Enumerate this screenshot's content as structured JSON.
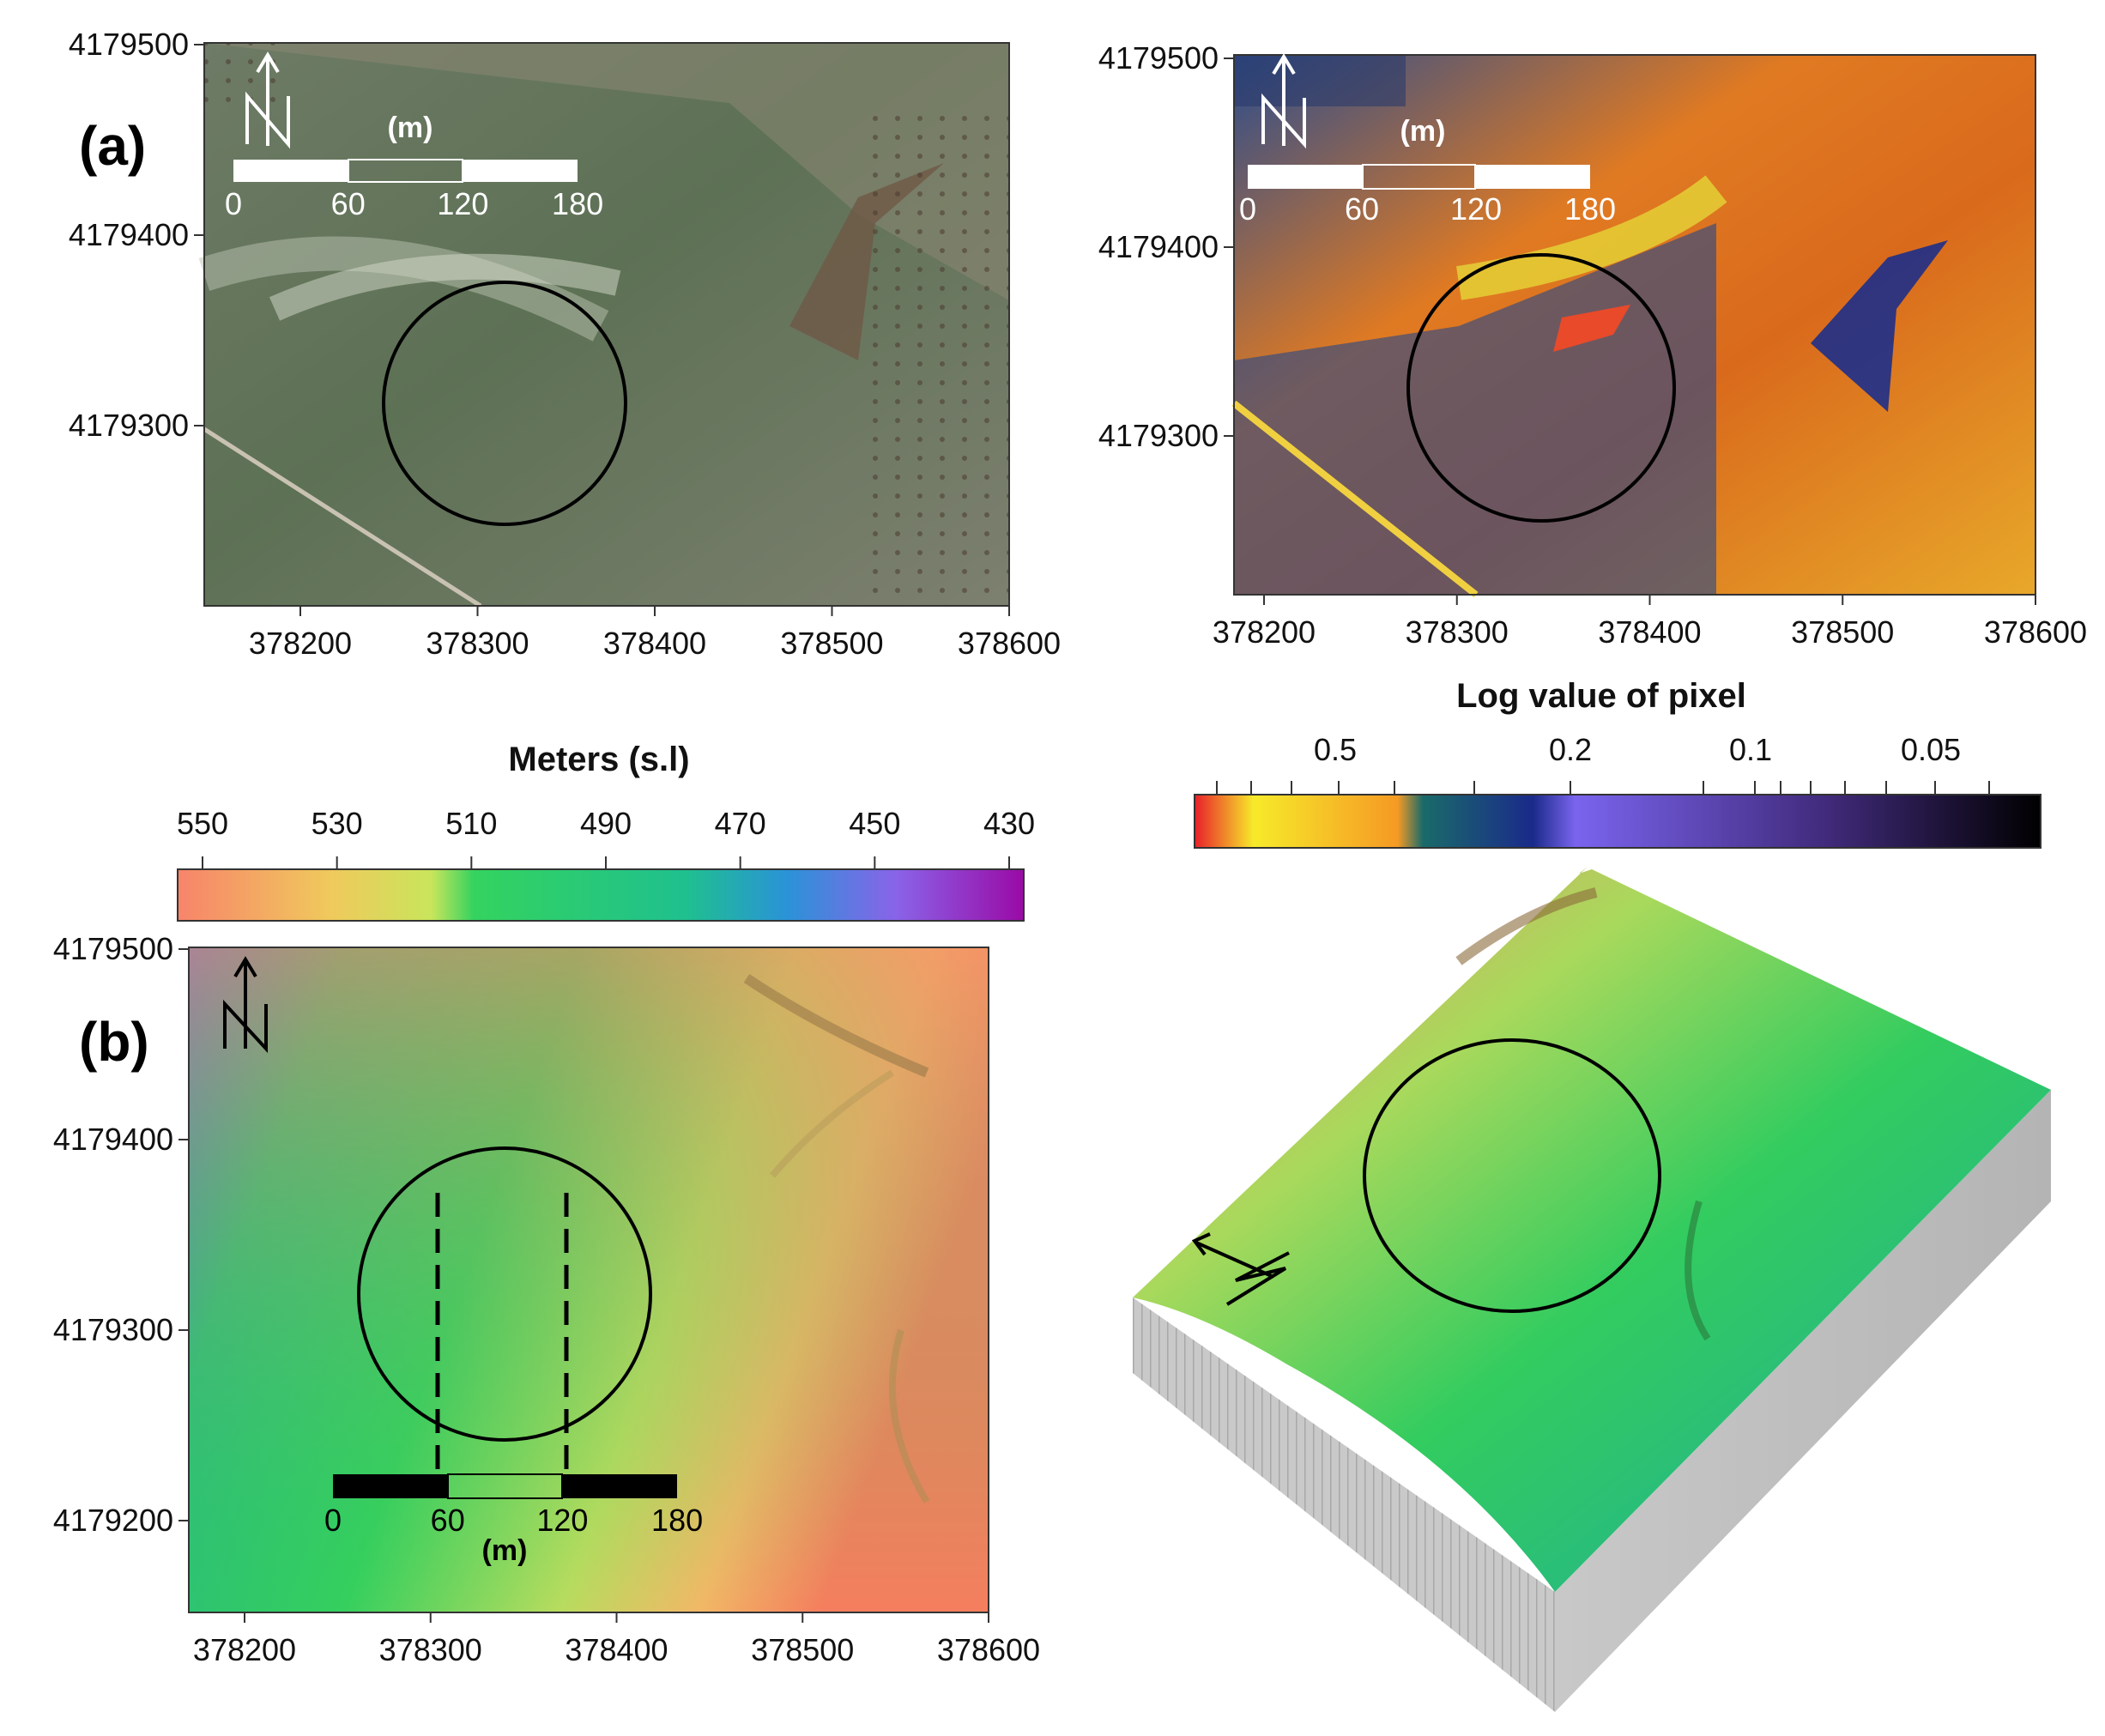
{
  "panels": {
    "a": {
      "label": "(a)"
    },
    "b": {
      "label": "(b)"
    }
  },
  "coordinates": {
    "x_ticks": [
      "378200",
      "378300",
      "378400",
      "378500",
      "378600"
    ],
    "y_ticks_top": [
      "4179500",
      "4179400",
      "4179300"
    ],
    "y_ticks_bottom": [
      "4179500",
      "4179400",
      "4179300",
      "4179200"
    ]
  },
  "scale_bar": {
    "ticks": [
      "0",
      "60",
      "120",
      "180"
    ],
    "unit": "(m)"
  },
  "north_arrow": {
    "letter": "N",
    "icon": "north-arrow-icon"
  },
  "elevation_colorbar": {
    "title": "Meters (s.l)",
    "ticks": [
      "550",
      "530",
      "510",
      "490",
      "470",
      "450",
      "430"
    ],
    "colors": [
      "#f7846a",
      "#f0c95c",
      "#c9e55b",
      "#34d35f",
      "#1fc08e",
      "#2a93d8",
      "#8a63e8",
      "#9a0aa6"
    ]
  },
  "log_colorbar": {
    "title": "Log value of pixel",
    "ticks": [
      "0.5",
      "0.2",
      "0.1",
      "0.05"
    ],
    "colors": [
      "#e8202a",
      "#f7ea2a",
      "#f59a24",
      "#1a6a6a",
      "#1a2a8a",
      "#7a64ee",
      "#402a7a",
      "#000000"
    ]
  }
}
